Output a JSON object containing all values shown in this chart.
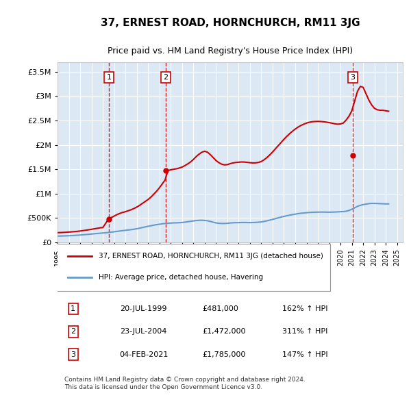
{
  "title": "37, ERNEST ROAD, HORNCHURCH, RM11 3JG",
  "subtitle": "Price paid vs. HM Land Registry's House Price Index (HPI)",
  "bg_color": "#ffffff",
  "plot_bg_color": "#dce9f5",
  "grid_color": "#ffffff",
  "ylabel_ticks": [
    "£0",
    "£500K",
    "£1M",
    "£1.5M",
    "£2M",
    "£2.5M",
    "£3M",
    "£3.5M"
  ],
  "ytick_values": [
    0,
    500000,
    1000000,
    1500000,
    2000000,
    2500000,
    3000000,
    3500000
  ],
  "xmin": 1995.0,
  "xmax": 2025.5,
  "ymin": 0,
  "ymax": 3700000,
  "sale_dates": [
    1999.55,
    2004.55,
    2021.09
  ],
  "sale_prices": [
    481000,
    1472000,
    1785000
  ],
  "sale_labels": [
    "1",
    "2",
    "3"
  ],
  "vline_color": "#cc0000",
  "sale_marker_color": "#cc0000",
  "hpi_line_color": "#6699cc",
  "price_line_color": "#cc0000",
  "hpi_data_x": [
    1995.0,
    1995.25,
    1995.5,
    1995.75,
    1996.0,
    1996.25,
    1996.5,
    1996.75,
    1997.0,
    1997.25,
    1997.5,
    1997.75,
    1998.0,
    1998.25,
    1998.5,
    1998.75,
    1999.0,
    1999.25,
    1999.5,
    1999.75,
    2000.0,
    2000.25,
    2000.5,
    2000.75,
    2001.0,
    2001.25,
    2001.5,
    2001.75,
    2002.0,
    2002.25,
    2002.5,
    2002.75,
    2003.0,
    2003.25,
    2003.5,
    2003.75,
    2004.0,
    2004.25,
    2004.5,
    2004.75,
    2005.0,
    2005.25,
    2005.5,
    2005.75,
    2006.0,
    2006.25,
    2006.5,
    2006.75,
    2007.0,
    2007.25,
    2007.5,
    2007.75,
    2008.0,
    2008.25,
    2008.5,
    2008.75,
    2009.0,
    2009.25,
    2009.5,
    2009.75,
    2010.0,
    2010.25,
    2010.5,
    2010.75,
    2011.0,
    2011.25,
    2011.5,
    2011.75,
    2012.0,
    2012.25,
    2012.5,
    2012.75,
    2013.0,
    2013.25,
    2013.5,
    2013.75,
    2014.0,
    2014.25,
    2014.5,
    2014.75,
    2015.0,
    2015.25,
    2015.5,
    2015.75,
    2016.0,
    2016.25,
    2016.5,
    2016.75,
    2017.0,
    2017.25,
    2017.5,
    2017.75,
    2018.0,
    2018.25,
    2018.5,
    2018.75,
    2019.0,
    2019.25,
    2019.5,
    2019.75,
    2020.0,
    2020.25,
    2020.5,
    2020.75,
    2021.0,
    2021.25,
    2021.5,
    2021.75,
    2022.0,
    2022.25,
    2022.5,
    2022.75,
    2023.0,
    2023.25,
    2023.5,
    2023.75,
    2024.0,
    2024.25
  ],
  "hpi_data_y": [
    130000,
    131000,
    133000,
    135000,
    137000,
    140000,
    143000,
    147000,
    151000,
    156000,
    161000,
    166000,
    172000,
    178000,
    183000,
    188000,
    193000,
    198000,
    203000,
    210000,
    218000,
    226000,
    234000,
    241000,
    248000,
    255000,
    262000,
    270000,
    280000,
    292000,
    305000,
    318000,
    330000,
    342000,
    354000,
    364000,
    373000,
    381000,
    388000,
    393000,
    397000,
    400000,
    402000,
    404000,
    408000,
    415000,
    424000,
    433000,
    441000,
    448000,
    453000,
    454000,
    451000,
    443000,
    430000,
    415000,
    400000,
    392000,
    388000,
    388000,
    392000,
    398000,
    402000,
    405000,
    406000,
    408000,
    408000,
    407000,
    406000,
    407000,
    410000,
    414000,
    420000,
    430000,
    443000,
    457000,
    472000,
    488000,
    504000,
    519000,
    533000,
    547000,
    559000,
    570000,
    580000,
    590000,
    598000,
    604000,
    609000,
    614000,
    618000,
    620000,
    621000,
    622000,
    622000,
    621000,
    620000,
    621000,
    623000,
    626000,
    630000,
    633000,
    640000,
    655000,
    680000,
    710000,
    740000,
    760000,
    775000,
    785000,
    795000,
    800000,
    800000,
    798000,
    795000,
    792000,
    790000,
    789000
  ],
  "price_data_x": [
    1995.0,
    1995.25,
    1995.5,
    1995.75,
    1996.0,
    1996.25,
    1996.5,
    1996.75,
    1997.0,
    1997.25,
    1997.5,
    1997.75,
    1998.0,
    1998.25,
    1998.5,
    1998.75,
    1999.0,
    1999.25,
    1999.5,
    1999.75,
    2000.0,
    2000.25,
    2000.5,
    2000.75,
    2001.0,
    2001.25,
    2001.5,
    2001.75,
    2002.0,
    2002.25,
    2002.5,
    2002.75,
    2003.0,
    2003.25,
    2003.5,
    2003.75,
    2004.0,
    2004.25,
    2004.5,
    2004.75,
    2005.0,
    2005.25,
    2005.5,
    2005.75,
    2006.0,
    2006.25,
    2006.5,
    2006.75,
    2007.0,
    2007.25,
    2007.5,
    2007.75,
    2008.0,
    2008.25,
    2008.5,
    2008.75,
    2009.0,
    2009.25,
    2009.5,
    2009.75,
    2010.0,
    2010.25,
    2010.5,
    2010.75,
    2011.0,
    2011.25,
    2011.5,
    2011.75,
    2012.0,
    2012.25,
    2012.5,
    2012.75,
    2013.0,
    2013.25,
    2013.5,
    2013.75,
    2014.0,
    2014.25,
    2014.5,
    2014.75,
    2015.0,
    2015.25,
    2015.5,
    2015.75,
    2016.0,
    2016.25,
    2016.5,
    2016.75,
    2017.0,
    2017.25,
    2017.5,
    2017.75,
    2018.0,
    2018.25,
    2018.5,
    2018.75,
    2019.0,
    2019.25,
    2019.5,
    2019.75,
    2020.0,
    2020.25,
    2020.5,
    2020.75,
    2021.0,
    2021.25,
    2021.5,
    2021.75,
    2022.0,
    2022.25,
    2022.5,
    2022.75,
    2023.0,
    2023.25,
    2023.5,
    2023.75,
    2024.0,
    2024.25
  ],
  "price_data_y": [
    200000,
    202000,
    205000,
    208000,
    212000,
    216000,
    221000,
    227000,
    234000,
    242000,
    250000,
    259000,
    269000,
    279000,
    289000,
    298000,
    306000,
    390000,
    481000,
    510000,
    540000,
    570000,
    595000,
    615000,
    630000,
    650000,
    670000,
    695000,
    725000,
    760000,
    800000,
    840000,
    880000,
    930000,
    990000,
    1050000,
    1120000,
    1200000,
    1280000,
    1472000,
    1490000,
    1500000,
    1510000,
    1525000,
    1545000,
    1575000,
    1610000,
    1650000,
    1700000,
    1760000,
    1810000,
    1850000,
    1870000,
    1850000,
    1800000,
    1740000,
    1680000,
    1635000,
    1605000,
    1590000,
    1595000,
    1615000,
    1630000,
    1640000,
    1645000,
    1650000,
    1648000,
    1642000,
    1635000,
    1630000,
    1632000,
    1640000,
    1660000,
    1695000,
    1740000,
    1795000,
    1855000,
    1920000,
    1985000,
    2050000,
    2115000,
    2175000,
    2230000,
    2280000,
    2325000,
    2365000,
    2398000,
    2425000,
    2448000,
    2465000,
    2476000,
    2480000,
    2482000,
    2480000,
    2475000,
    2467000,
    2457000,
    2445000,
    2432000,
    2425000,
    2430000,
    2450000,
    2510000,
    2590000,
    2700000,
    2900000,
    3100000,
    3200000,
    3180000,
    3050000,
    2920000,
    2820000,
    2750000,
    2720000,
    2710000,
    2710000,
    2700000,
    2690000
  ],
  "legend_label_red": "37, ERNEST ROAD, HORNCHURCH, RM11 3JG (detached house)",
  "legend_label_blue": "HPI: Average price, detached house, Havering",
  "table_data": [
    [
      "1",
      "20-JUL-1999",
      "£481,000",
      "162% ↑ HPI"
    ],
    [
      "2",
      "23-JUL-2004",
      "£1,472,000",
      "311% ↑ HPI"
    ],
    [
      "3",
      "04-FEB-2021",
      "£1,785,000",
      "147% ↑ HPI"
    ]
  ],
  "footnote": "Contains HM Land Registry data © Crown copyright and database right 2024.\nThis data is licensed under the Open Government Licence v3.0."
}
